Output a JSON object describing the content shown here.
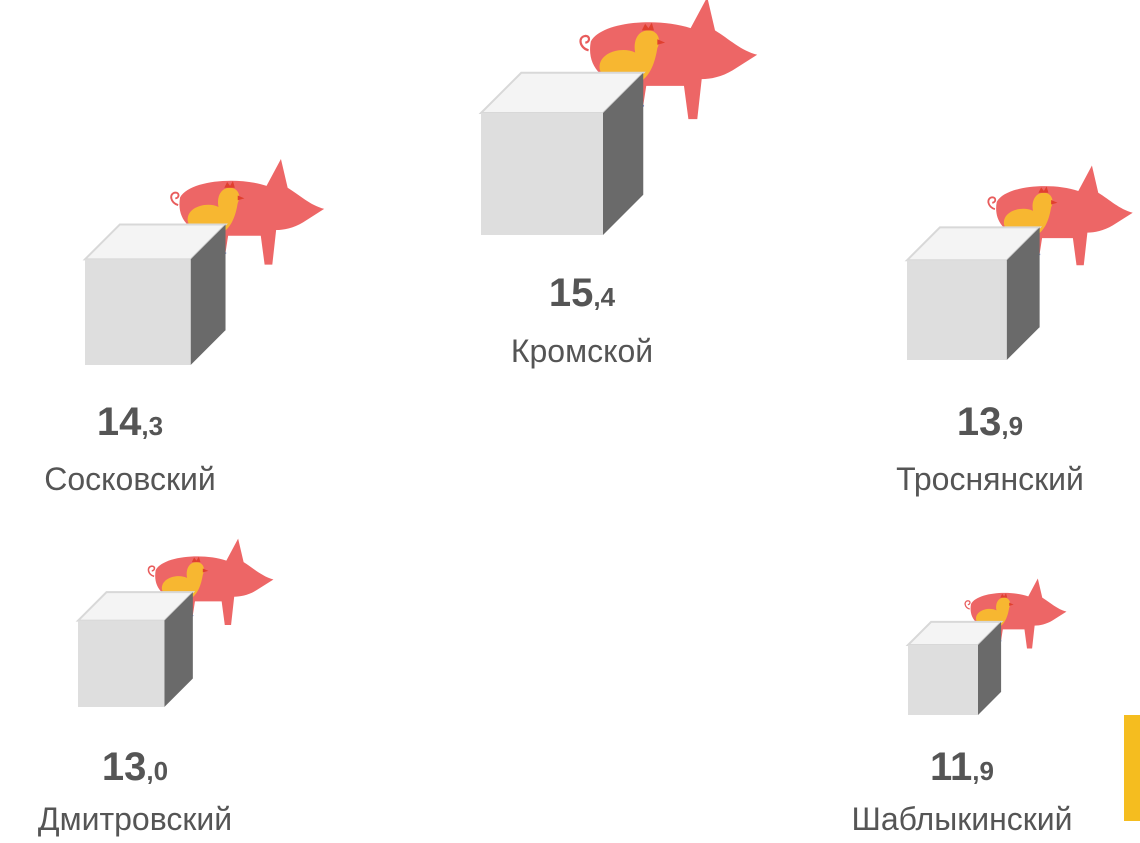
{
  "chart_data": {
    "type": "pictogram",
    "categories": [
      "Кромской",
      "Сосковский",
      "Троснянский",
      "Дмитровский",
      "Шаблыкинский"
    ],
    "values": [
      15.4,
      14.3,
      13.9,
      13.0,
      11.9
    ],
    "value_labels": [
      "15,4",
      "14,3",
      "13,9",
      "13,0",
      "11,9"
    ]
  }
}
